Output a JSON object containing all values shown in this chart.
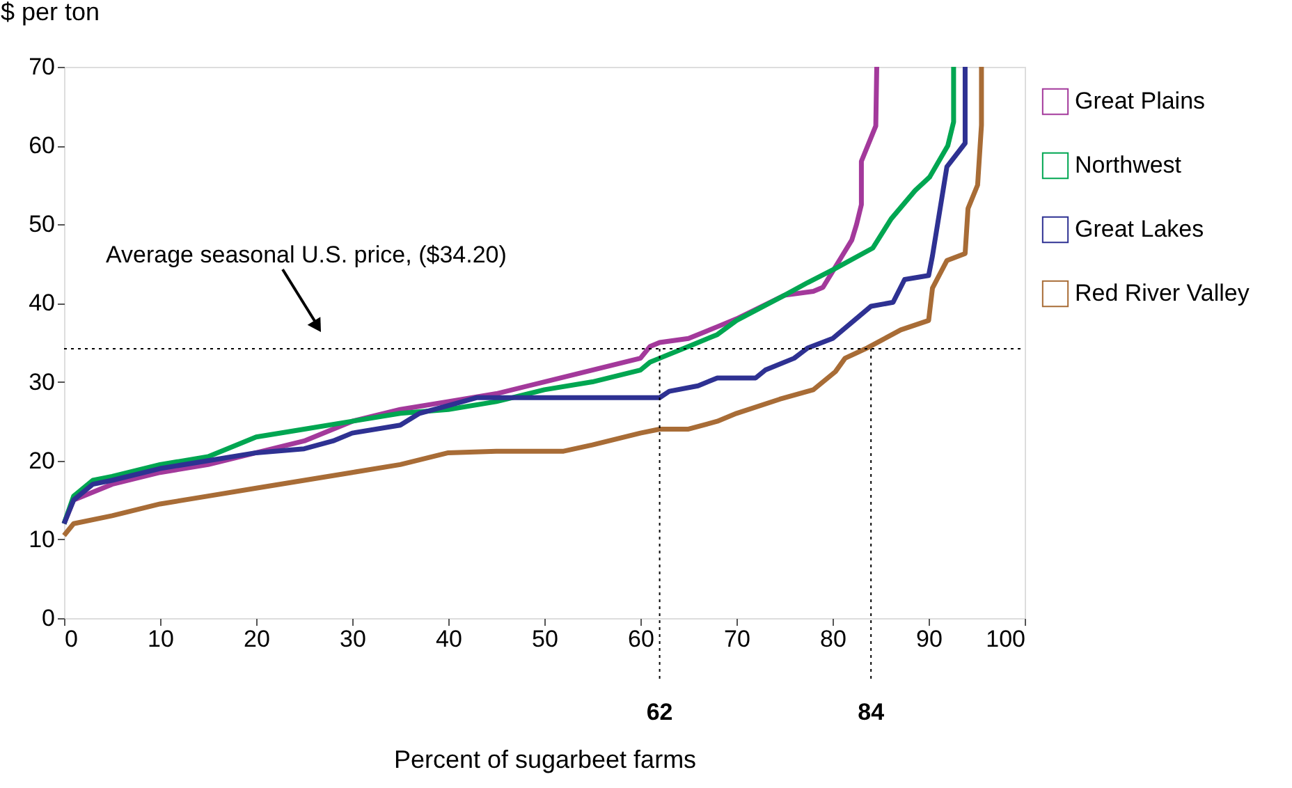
{
  "chart_data": {
    "type": "line",
    "xlabel": "Percent of sugarbeet farms",
    "ylabel": "$ per ton",
    "xlim": [
      0,
      100
    ],
    "xticks": [
      0,
      10,
      20,
      30,
      40,
      50,
      60,
      70,
      80,
      90,
      100
    ],
    "ylim": [
      0,
      70
    ],
    "yticks": [
      0,
      10,
      20,
      30,
      40,
      50,
      60,
      70
    ],
    "grid": false,
    "legend": "top right",
    "marker": "none",
    "line_style": "solid",
    "series": [
      {
        "name": "Great Plains",
        "color": "#a3399b",
        "x": [
          0,
          1,
          5,
          10,
          15,
          20,
          25,
          30,
          35,
          40,
          45,
          50,
          55,
          60,
          61,
          62,
          65,
          68,
          70,
          75,
          78,
          79,
          80,
          81,
          82,
          82.5,
          83,
          83,
          84.5,
          84.6
        ],
        "values": [
          12,
          15,
          17,
          18.5,
          19.5,
          21,
          22.5,
          25,
          26.5,
          27.5,
          28.5,
          30,
          31.5,
          33,
          34.5,
          35,
          35.5,
          37,
          38,
          41,
          41.5,
          42,
          44,
          46,
          48,
          50,
          52.5,
          58,
          62.5,
          70
        ]
      },
      {
        "name": "Northwest",
        "color": "#00a651",
        "x": [
          0,
          1,
          3,
          5,
          10,
          15,
          20,
          25,
          30,
          35,
          40,
          45,
          50,
          55,
          60,
          61,
          62,
          65,
          68,
          70,
          75,
          77.4,
          80.3,
          84.2,
          86.1,
          88.6,
          90.1,
          92,
          92.6,
          92.6
        ],
        "values": [
          12,
          15.5,
          17.5,
          18,
          19.5,
          20.5,
          23,
          24,
          25,
          26,
          26.5,
          27.5,
          29,
          30,
          31.5,
          32.5,
          33,
          34.5,
          36,
          37.8,
          41,
          42.6,
          44.4,
          47,
          50.7,
          54.3,
          56,
          60,
          63,
          70
        ]
      },
      {
        "name": "Great Lakes",
        "color": "#2e3192",
        "x": [
          0,
          1,
          3,
          5,
          10,
          15,
          20,
          25,
          28,
          30,
          35,
          37,
          40,
          43,
          45,
          55,
          62,
          63,
          66,
          68,
          72,
          73,
          76,
          77.4,
          80,
          84,
          86.3,
          87.5,
          90,
          90.4,
          91.9,
          93.8,
          93.8
        ],
        "values": [
          12,
          15,
          17,
          17.5,
          19,
          20,
          21,
          21.5,
          22.5,
          23.5,
          24.5,
          26,
          27,
          28,
          28,
          28,
          28,
          28.8,
          29.5,
          30.5,
          30.5,
          31.5,
          33,
          34.3,
          35.5,
          39.6,
          40.1,
          43,
          43.5,
          46,
          57.3,
          60.3,
          70
        ]
      },
      {
        "name": "Red River Valley",
        "color": "#a86c36",
        "x": [
          0,
          1,
          5,
          10,
          15,
          20,
          25,
          30,
          35,
          40,
          45,
          52,
          55,
          60,
          62,
          65,
          68,
          70,
          74.5,
          78,
          80.3,
          81.3,
          83.6,
          87.1,
          90,
          90.4,
          91.9,
          93.8,
          94.1,
          95.1,
          95.5,
          95.5
        ],
        "values": [
          10.5,
          12,
          13,
          14.5,
          15.5,
          16.5,
          17.5,
          18.5,
          19.5,
          21,
          21.2,
          21.2,
          22,
          23.5,
          24,
          24,
          25,
          26,
          27.8,
          29,
          31.3,
          33,
          34.3,
          36.6,
          37.8,
          41.9,
          45.4,
          46.3,
          52,
          55,
          62.6,
          70
        ]
      }
    ],
    "annotations": [
      "Average seasonal U.S. price, ($34.20)"
    ],
    "ref_lines": [
      {
        "axis": "y",
        "value": 34.2,
        "line_style": "dotted",
        "color": "#000000"
      },
      {
        "axis": "x",
        "value": 62,
        "label": "62",
        "line_style": "dotted",
        "color": "#000000"
      },
      {
        "axis": "x",
        "value": 84,
        "label": "84",
        "line_style": "dotted",
        "color": "#000000"
      }
    ]
  }
}
